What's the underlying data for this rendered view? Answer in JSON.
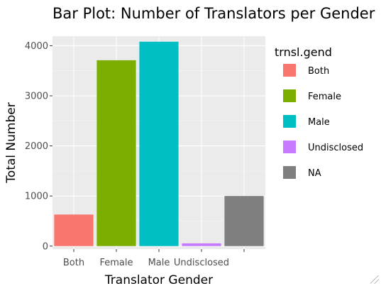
{
  "chart_data": {
    "type": "bar",
    "title": "Bar Plot: Number of Translators per Gender",
    "xlabel": "Translator Gender",
    "ylabel": "Total Number",
    "categories": [
      "Both",
      "Female",
      "Male",
      "Undisclosed",
      ""
    ],
    "values": [
      630,
      3710,
      4080,
      55,
      1000
    ],
    "colors": [
      "#F8766D",
      "#7CAE00",
      "#00BFC4",
      "#C77CFF",
      "#7F7F7F"
    ],
    "ylim": [
      -60,
      4190
    ],
    "yticks": [
      0,
      1000,
      2000,
      3000,
      4000
    ],
    "ytick_labels": [
      "0",
      "1000",
      "2000",
      "3000",
      "4000"
    ],
    "grid": true,
    "legend": {
      "title": "trnsl.gend",
      "position": "right",
      "entries": [
        {
          "label": "Both",
          "color": "#F8766D"
        },
        {
          "label": "Female",
          "color": "#7CAE00"
        },
        {
          "label": "Male",
          "color": "#00BFC4"
        },
        {
          "label": "Undisclosed",
          "color": "#C77CFF"
        },
        {
          "label": "NA",
          "color": "#7F7F7F"
        }
      ]
    }
  }
}
